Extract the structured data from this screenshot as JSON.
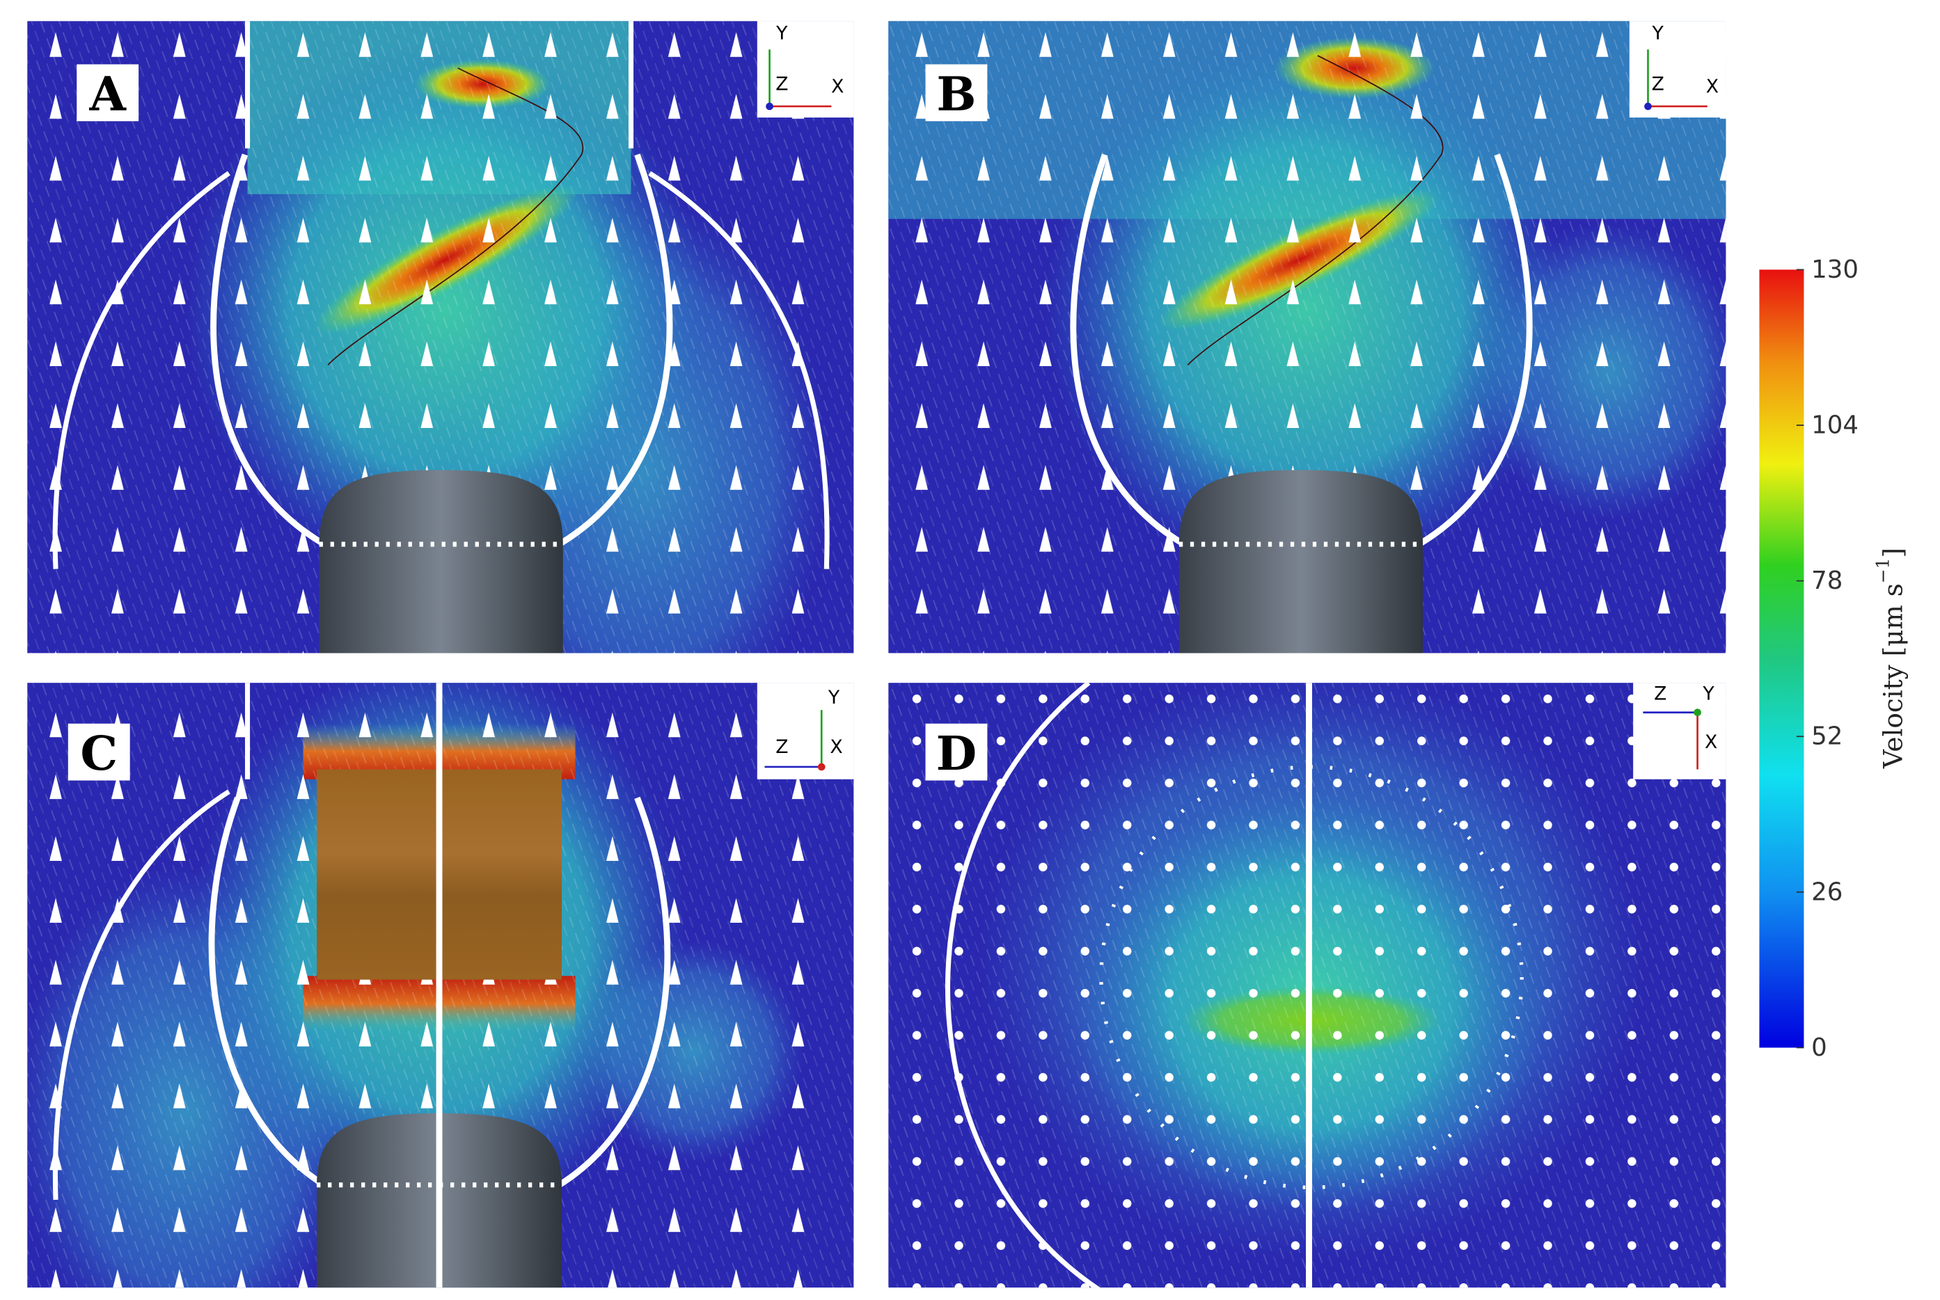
{
  "panels": [
    {
      "label": "A",
      "axes": [
        "Y",
        "Z",
        "X"
      ]
    },
    {
      "label": "B",
      "axes": [
        "Y",
        "Z",
        "X"
      ]
    },
    {
      "label": "C",
      "axes": [
        "Y",
        "Z",
        "X"
      ]
    },
    {
      "label": "D",
      "axes": [
        "Z",
        "Y",
        "X"
      ]
    }
  ],
  "colorbar": {
    "lim": [
      0,
      130
    ],
    "ticks": [
      0,
      26,
      52,
      78,
      104,
      130
    ],
    "label": {
      "text": "Velocity [μm s",
      "sup": "−1",
      "close": "]"
    }
  }
}
